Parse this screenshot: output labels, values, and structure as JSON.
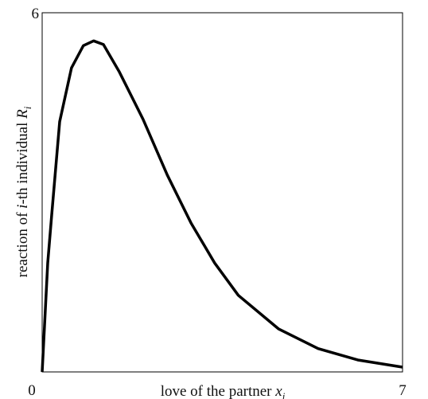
{
  "chart_data": {
    "type": "line",
    "xlabel": [
      "love of the partner ",
      "x",
      "i"
    ],
    "ylabel": [
      "reaction of ",
      "i",
      "-th individual ",
      "R",
      "i"
    ],
    "x": [
      0,
      0.108,
      0.185,
      0.34,
      0.57,
      0.8,
      1.0,
      1.19,
      1.5,
      1.96,
      2.43,
      2.89,
      3.35,
      3.81,
      4.59,
      5.36,
      6.13,
      7.0
    ],
    "y": [
      0,
      1.82,
      2.62,
      4.18,
      5.08,
      5.45,
      5.53,
      5.47,
      5.01,
      4.22,
      3.29,
      2.49,
      1.82,
      1.28,
      0.72,
      0.39,
      0.2,
      0.08
    ],
    "color": "#000000",
    "xlim": [
      0,
      7
    ],
    "ylim": [
      0,
      6
    ],
    "xticks": [
      0,
      7
    ],
    "yticks": [
      6
    ]
  }
}
